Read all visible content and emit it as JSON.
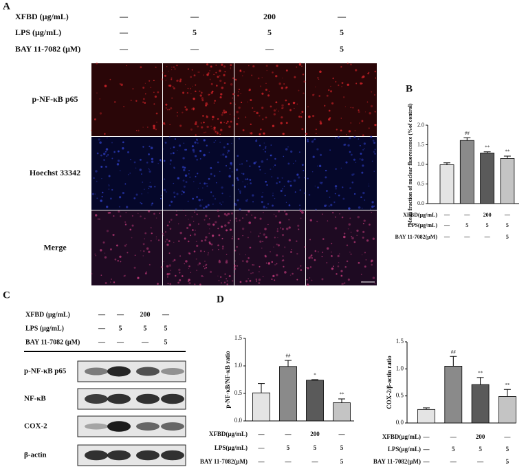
{
  "panel_a": {
    "label": "A",
    "treatments": [
      {
        "label": "XFBD (μg/mL)",
        "cells": [
          "—",
          "—",
          "200",
          "—"
        ]
      },
      {
        "label": "LPS (μg/mL)",
        "cells": [
          "—",
          "5",
          "5",
          "5"
        ]
      },
      {
        "label": "BAY 11-7082 (μM)",
        "cells": [
          "—",
          "—",
          "—",
          "5"
        ]
      }
    ],
    "rows": [
      "p-NF-κB p65",
      "Hoechst 33342",
      "Merge"
    ]
  },
  "panel_c": {
    "label": "C",
    "treatments": [
      {
        "label": "XFBD (μg/mL)",
        "cells": [
          "—",
          "—",
          "200",
          "—"
        ]
      },
      {
        "label": "LPS (μg/mL)",
        "cells": [
          "—",
          "5",
          "5",
          "5"
        ]
      },
      {
        "label": "BAY 11-7082 (μM)",
        "cells": [
          "—",
          "—",
          "—",
          "5"
        ]
      }
    ],
    "blots": [
      "p-NF-κB p65",
      "NF-κB",
      "COX-2",
      "β-actin"
    ]
  },
  "chart_data": [
    {
      "type": "bar",
      "panel": "B",
      "ylabel": "Mean fraction of nuclear fluorescence (%of control)",
      "categories": [
        null,
        null,
        null,
        null
      ],
      "values": [
        0.99,
        1.61,
        1.29,
        1.15
      ],
      "errors": [
        0.05,
        0.07,
        0.03,
        0.06
      ],
      "annotations": [
        null,
        "##",
        "**",
        "**"
      ],
      "colors": [
        "#e4e4e4",
        "#8a8a8a",
        "#5a5a5a",
        "#c4c4c4"
      ],
      "ylim": [
        0,
        2
      ],
      "yticks": [
        {
          "value": 0,
          "label": "0.0"
        },
        {
          "value": 0.5,
          "label": "0.5"
        },
        {
          "value": 1,
          "label": "1.0"
        },
        {
          "value": 1.5,
          "label": "1.5"
        },
        {
          "value": 2,
          "label": "2.0"
        }
      ],
      "treatments": [
        {
          "label": "XFBD(μg/mL)",
          "cells": [
            "—",
            "—",
            "200",
            "—"
          ]
        },
        {
          "label": "LPS(μg/mL)",
          "cells": [
            "—",
            "5",
            "5",
            "5"
          ]
        },
        {
          "label": "BAY 11-7082(μM)",
          "cells": [
            "—",
            "—",
            "—",
            "5"
          ]
        }
      ]
    },
    {
      "type": "bar",
      "panel": "D",
      "ylabel": "p-NF-κB/NF-κB ratio",
      "categories": [
        null,
        null,
        null,
        null
      ],
      "values": [
        0.51,
        0.99,
        0.74,
        0.33
      ],
      "errors": [
        0.17,
        0.11,
        0.01,
        0.07
      ],
      "annotations": [
        null,
        "##",
        "*",
        "**"
      ],
      "colors": [
        "#e4e4e4",
        "#8a8a8a",
        "#5a5a5a",
        "#c4c4c4"
      ],
      "ylim": [
        0,
        1.5
      ],
      "yticks": [
        {
          "value": 0,
          "label": "0.0"
        },
        {
          "value": 0.5,
          "label": "0.5"
        },
        {
          "value": 1,
          "label": "1.0"
        },
        {
          "value": 1.5,
          "label": "1.5"
        }
      ],
      "treatments": [
        {
          "label": "XFBD(μg/mL)",
          "cells": [
            "—",
            "—",
            "200",
            "—"
          ]
        },
        {
          "label": "LPS(μg/mL)",
          "cells": [
            "—",
            "5",
            "5",
            "5"
          ]
        },
        {
          "label": "BAY 11-7082(μM)",
          "cells": [
            "—",
            "—",
            "—",
            "5"
          ]
        }
      ]
    },
    {
      "type": "bar",
      "ylabel": "COX-2/β-actin ratio",
      "categories": [
        null,
        null,
        null,
        null
      ],
      "values": [
        0.25,
        1.05,
        0.71,
        0.49
      ],
      "errors": [
        0.03,
        0.18,
        0.13,
        0.13
      ],
      "annotations": [
        null,
        "##",
        "**",
        "**"
      ],
      "colors": [
        "#e4e4e4",
        "#8a8a8a",
        "#5a5a5a",
        "#c4c4c4"
      ],
      "ylim": [
        0,
        1.5
      ],
      "yticks": [
        {
          "value": 0,
          "label": "0.0"
        },
        {
          "value": 0.5,
          "label": "0.5"
        },
        {
          "value": 1,
          "label": "1.0"
        },
        {
          "value": 1.5,
          "label": "1.5"
        }
      ],
      "treatments": [
        {
          "label": "XFBD(μg/mL)",
          "cells": [
            "—",
            "—",
            "200",
            "—"
          ]
        },
        {
          "label": "LPS(μg/mL)",
          "cells": [
            "—",
            "5",
            "5",
            "5"
          ]
        },
        {
          "label": "BAY 11-7082(μM)",
          "cells": [
            "—",
            "—",
            "—",
            "5"
          ]
        }
      ]
    }
  ]
}
